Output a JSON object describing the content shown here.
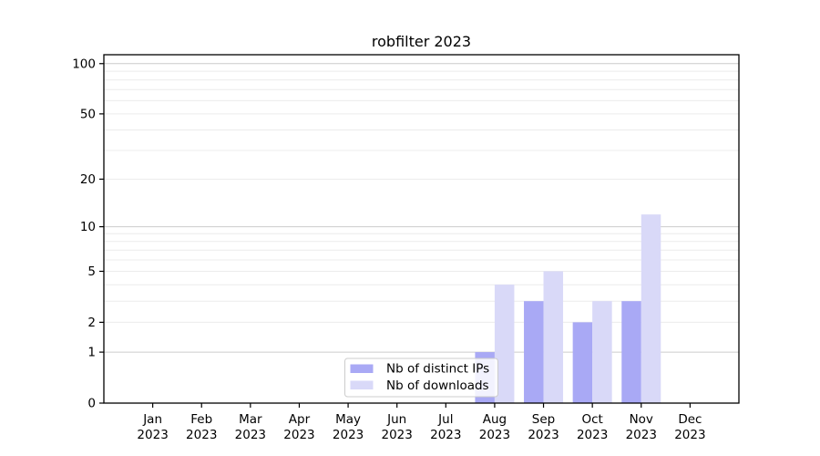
{
  "chart_data": {
    "type": "bar",
    "title": "robfilter 2023",
    "x_tick_months": [
      "Jan",
      "Feb",
      "Mar",
      "Apr",
      "May",
      "Jun",
      "Jul",
      "Aug",
      "Sep",
      "Oct",
      "Nov",
      "Dec"
    ],
    "x_tick_year": "2023",
    "categories": [
      "Jan 2023",
      "Feb 2023",
      "Mar 2023",
      "Apr 2023",
      "May 2023",
      "Jun 2023",
      "Jul 2023",
      "Aug 2023",
      "Sep 2023",
      "Oct 2023",
      "Nov 2023",
      "Dec 2023"
    ],
    "series": [
      {
        "name": "Nb of distinct IPs",
        "color": "#a9a9f5",
        "values": [
          0,
          0,
          0,
          0,
          0,
          0,
          0,
          1,
          3,
          2,
          3,
          0
        ]
      },
      {
        "name": "Nb of downloads",
        "color": "#d9d9f8",
        "values": [
          0,
          0,
          0,
          0,
          0,
          0,
          0,
          4,
          5,
          3,
          12,
          0
        ]
      }
    ],
    "xlabel": "",
    "ylabel": "",
    "y_scale": "log1p",
    "ylim": [
      0,
      113
    ],
    "y_ticks": [
      0,
      1,
      2,
      5,
      10,
      20,
      50,
      100
    ],
    "grid": true,
    "grid_minor_values": [
      2,
      3,
      4,
      5,
      6,
      7,
      8,
      9,
      20,
      30,
      40,
      50,
      60,
      70,
      80,
      90
    ],
    "grid_major_values": [
      1,
      10,
      100
    ],
    "legend_position": "bottom-center",
    "colors": {
      "grid_minor": "#ececec",
      "grid_major": "#cccccc",
      "axis": "#000000",
      "legend_border": "#cccccc",
      "legend_background": "rgba(255,255,255,0.85)"
    }
  }
}
